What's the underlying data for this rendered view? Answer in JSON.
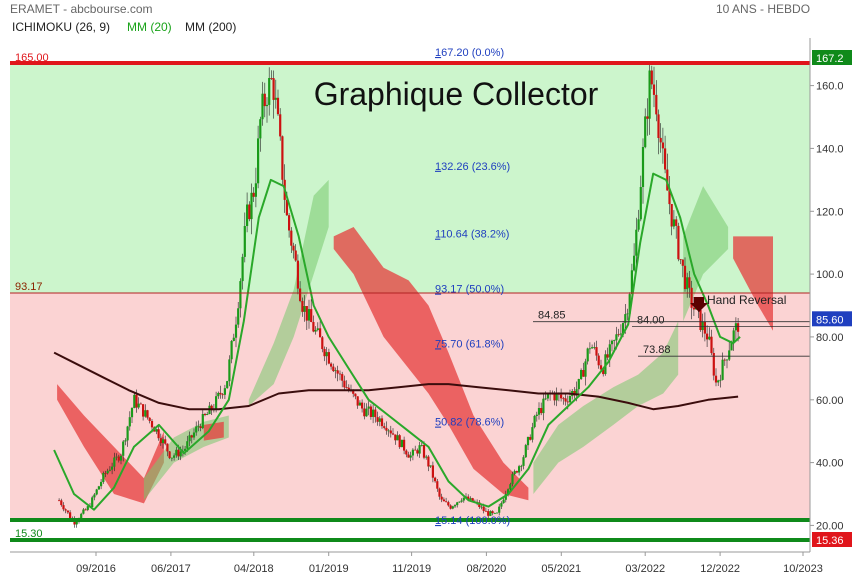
{
  "header": {
    "source": "ERAMET - abcbourse.com",
    "period": "10 ANS - HEBDO",
    "ichimoku": "ICHIMOKU (26, 9)",
    "mm20": "MM (20)",
    "mm200": "MM (200)"
  },
  "colors": {
    "upper_zone": "#ccf5cc",
    "lower_zone": "#fbd3d3",
    "red_line": "#e0151b",
    "green_line": "#0f8a1a",
    "mm20": "#2aa82a",
    "mm200": "#3b0d0d",
    "fib_text": "#1f3fbf",
    "candle_up": "#1a9a1a",
    "candle_down": "#cc1111"
  },
  "chart_data": {
    "type": "candlestick",
    "title": "Graphique Collector",
    "x_ticks": [
      "09/2016",
      "06/2017",
      "04/2018",
      "01/2019",
      "11/2019",
      "08/2020",
      "05/2021",
      "03/2022",
      "12/2022",
      "10/2023"
    ],
    "y_ticks": [
      20.0,
      40.0,
      60.0,
      80.0,
      100.0,
      120.0,
      140.0,
      160.0
    ],
    "ylim": [
      16,
      175
    ],
    "grid": false,
    "horizontal_lines": [
      {
        "value": 165.0,
        "label": "165.00",
        "color": "#e0151b"
      },
      {
        "value": 93.17,
        "label": "93.17",
        "color": "#b22222"
      },
      {
        "value": 20.5,
        "label": "",
        "color": "#0f8a1a"
      },
      {
        "value": 15.3,
        "label": "15.30",
        "color": "#0f8a1a"
      },
      {
        "value": 84.0,
        "label": "84.00",
        "color": "#333333"
      },
      {
        "value": 84.85,
        "label": "84.85",
        "color": "#333333"
      },
      {
        "value": 73.88,
        "label": "73.88",
        "color": "#333333"
      }
    ],
    "fibonacci": [
      {
        "value": 167.2,
        "label": "167.20  (0.0%)"
      },
      {
        "value": 132.26,
        "label": "132.26  (23.6%)"
      },
      {
        "value": 110.64,
        "label": "110.64  (38.2%)"
      },
      {
        "value": 93.17,
        "label": "93.17  (50.0%)"
      },
      {
        "value": 75.7,
        "label": "75.70  (61.8%)"
      },
      {
        "value": 50.82,
        "label": "50.82  (78.6%)"
      },
      {
        "value": 15.14,
        "label": "15.14  (100.0%)"
      }
    ],
    "price_tags": [
      {
        "value": 167.2,
        "label": "167.2",
        "color": "#0f8a1a"
      },
      {
        "value": 85.6,
        "label": "85.60",
        "color": "#1f3fbf"
      },
      {
        "value": 15.36,
        "label": "15.36",
        "color": "#e0151b"
      }
    ],
    "annotation": "Hand Reversal",
    "price_path": [
      [
        2016.3,
        28
      ],
      [
        2016.45,
        21
      ],
      [
        2016.6,
        26
      ],
      [
        2016.75,
        36
      ],
      [
        2016.92,
        43
      ],
      [
        2017.05,
        60
      ],
      [
        2017.15,
        56
      ],
      [
        2017.3,
        49
      ],
      [
        2017.42,
        42
      ],
      [
        2017.55,
        44
      ],
      [
        2017.7,
        52
      ],
      [
        2017.85,
        58
      ],
      [
        2017.98,
        66
      ],
      [
        2018.08,
        88
      ],
      [
        2018.18,
        118
      ],
      [
        2018.26,
        128
      ],
      [
        2018.32,
        150
      ],
      [
        2018.38,
        158
      ],
      [
        2018.44,
        162
      ],
      [
        2018.5,
        145
      ],
      [
        2018.58,
        118
      ],
      [
        2018.66,
        105
      ],
      [
        2018.74,
        90
      ],
      [
        2018.86,
        82
      ],
      [
        2018.98,
        75
      ],
      [
        2019.1,
        68
      ],
      [
        2019.22,
        62
      ],
      [
        2019.34,
        57
      ],
      [
        2019.46,
        55
      ],
      [
        2019.58,
        52
      ],
      [
        2019.7,
        47
      ],
      [
        2019.82,
        42
      ],
      [
        2019.92,
        45
      ],
      [
        2020.02,
        38
      ],
      [
        2020.12,
        28
      ],
      [
        2020.22,
        26
      ],
      [
        2020.34,
        29
      ],
      [
        2020.48,
        27
      ],
      [
        2020.58,
        24
      ],
      [
        2020.68,
        23
      ],
      [
        2020.8,
        33
      ],
      [
        2020.94,
        41
      ],
      [
        2021.08,
        55
      ],
      [
        2021.22,
        62
      ],
      [
        2021.36,
        60
      ],
      [
        2021.5,
        64
      ],
      [
        2021.62,
        78
      ],
      [
        2021.74,
        70
      ],
      [
        2021.86,
        78
      ],
      [
        2021.98,
        88
      ],
      [
        2022.06,
        105
      ],
      [
        2022.12,
        128
      ],
      [
        2022.18,
        150
      ],
      [
        2022.22,
        163
      ],
      [
        2022.28,
        155
      ],
      [
        2022.36,
        132
      ],
      [
        2022.44,
        118
      ],
      [
        2022.54,
        102
      ],
      [
        2022.62,
        92
      ],
      [
        2022.7,
        86
      ],
      [
        2022.8,
        80
      ],
      [
        2022.88,
        65
      ],
      [
        2022.96,
        72
      ],
      [
        2023.04,
        80
      ],
      [
        2023.1,
        84
      ]
    ],
    "mm20_path": [
      [
        2016.25,
        44
      ],
      [
        2016.45,
        30
      ],
      [
        2016.65,
        25
      ],
      [
        2016.85,
        32
      ],
      [
        2017.05,
        45
      ],
      [
        2017.3,
        52
      ],
      [
        2017.55,
        43
      ],
      [
        2017.8,
        50
      ],
      [
        2018.0,
        60
      ],
      [
        2018.15,
        85
      ],
      [
        2018.3,
        118
      ],
      [
        2018.42,
        130
      ],
      [
        2018.55,
        128
      ],
      [
        2018.7,
        112
      ],
      [
        2018.85,
        90
      ],
      [
        2019.0,
        80
      ],
      [
        2019.2,
        70
      ],
      [
        2019.4,
        60
      ],
      [
        2019.6,
        55
      ],
      [
        2019.8,
        50
      ],
      [
        2020.0,
        45
      ],
      [
        2020.2,
        34
      ],
      [
        2020.4,
        28
      ],
      [
        2020.6,
        26
      ],
      [
        2020.8,
        30
      ],
      [
        2021.0,
        38
      ],
      [
        2021.2,
        52
      ],
      [
        2021.4,
        58
      ],
      [
        2021.6,
        64
      ],
      [
        2021.8,
        72
      ],
      [
        2022.0,
        84
      ],
      [
        2022.12,
        110
      ],
      [
        2022.25,
        132
      ],
      [
        2022.38,
        130
      ],
      [
        2022.52,
        118
      ],
      [
        2022.66,
        100
      ],
      [
        2022.8,
        90
      ],
      [
        2022.92,
        80
      ],
      [
        2023.05,
        78
      ],
      [
        2023.12,
        80
      ]
    ],
    "mm200_path": [
      [
        2016.25,
        75
      ],
      [
        2016.5,
        71
      ],
      [
        2016.75,
        67
      ],
      [
        2017.0,
        63
      ],
      [
        2017.3,
        59
      ],
      [
        2017.6,
        57
      ],
      [
        2017.9,
        57
      ],
      [
        2018.2,
        58
      ],
      [
        2018.5,
        62
      ],
      [
        2018.8,
        63
      ],
      [
        2019.1,
        63
      ],
      [
        2019.4,
        63
      ],
      [
        2019.7,
        64
      ],
      [
        2020.0,
        65
      ],
      [
        2020.2,
        65
      ],
      [
        2020.5,
        64
      ],
      [
        2020.8,
        63
      ],
      [
        2021.1,
        62
      ],
      [
        2021.4,
        62
      ],
      [
        2021.7,
        61
      ],
      [
        2022.0,
        59
      ],
      [
        2022.25,
        57
      ],
      [
        2022.5,
        58
      ],
      [
        2022.8,
        60
      ],
      [
        2023.1,
        61
      ]
    ],
    "cloud_segments": [
      {
        "kind": "bear",
        "upper": [
          [
            2016.28,
            65
          ],
          [
            2016.55,
            55
          ],
          [
            2016.85,
            45
          ],
          [
            2017.15,
            35
          ],
          [
            2017.35,
            50
          ]
        ],
        "lower": [
          [
            2016.28,
            60
          ],
          [
            2016.55,
            45
          ],
          [
            2016.85,
            30
          ],
          [
            2017.15,
            27
          ],
          [
            2017.35,
            40
          ]
        ]
      },
      {
        "kind": "bull",
        "upper": [
          [
            2017.15,
            35
          ],
          [
            2017.45,
            48
          ],
          [
            2017.75,
            53
          ],
          [
            2018.0,
            55
          ]
        ],
        "lower": [
          [
            2017.15,
            28
          ],
          [
            2017.45,
            40
          ],
          [
            2017.75,
            45
          ],
          [
            2018.0,
            48
          ]
        ]
      },
      {
        "kind": "bear",
        "upper": [
          [
            2017.75,
            52
          ],
          [
            2017.95,
            53
          ]
        ],
        "lower": [
          [
            2017.75,
            47
          ],
          [
            2017.95,
            48
          ]
        ]
      },
      {
        "kind": "bull",
        "upper": [
          [
            2018.2,
            60
          ],
          [
            2018.45,
            78
          ],
          [
            2018.65,
            95
          ],
          [
            2018.85,
            125
          ],
          [
            2019.0,
            130
          ]
        ],
        "lower": [
          [
            2018.2,
            58
          ],
          [
            2018.45,
            65
          ],
          [
            2018.65,
            80
          ],
          [
            2018.85,
            100
          ],
          [
            2019.0,
            115
          ]
        ]
      },
      {
        "kind": "bear",
        "upper": [
          [
            2019.05,
            112
          ],
          [
            2019.25,
            115
          ],
          [
            2019.55,
            102
          ],
          [
            2019.8,
            98
          ],
          [
            2020.0,
            90
          ],
          [
            2020.2,
            75
          ],
          [
            2020.45,
            55
          ],
          [
            2020.75,
            40
          ],
          [
            2021.0,
            32
          ]
        ],
        "lower": [
          [
            2019.05,
            108
          ],
          [
            2019.25,
            100
          ],
          [
            2019.55,
            80
          ],
          [
            2019.8,
            70
          ],
          [
            2020.0,
            62
          ],
          [
            2020.2,
            52
          ],
          [
            2020.45,
            38
          ],
          [
            2020.75,
            30
          ],
          [
            2021.0,
            28
          ]
        ]
      },
      {
        "kind": "bull",
        "upper": [
          [
            2021.05,
            40
          ],
          [
            2021.3,
            52
          ],
          [
            2021.55,
            58
          ],
          [
            2021.85,
            64
          ],
          [
            2022.1,
            68
          ],
          [
            2022.35,
            75
          ],
          [
            2022.5,
            85
          ]
        ],
        "lower": [
          [
            2021.05,
            30
          ],
          [
            2021.3,
            40
          ],
          [
            2021.55,
            45
          ],
          [
            2021.85,
            52
          ],
          [
            2022.1,
            58
          ],
          [
            2022.35,
            62
          ],
          [
            2022.5,
            68
          ]
        ]
      },
      {
        "kind": "bull",
        "upper": [
          [
            2022.55,
            112
          ],
          [
            2022.75,
            128
          ],
          [
            2023.0,
            115
          ]
        ],
        "lower": [
          [
            2022.55,
            85
          ],
          [
            2022.75,
            100
          ],
          [
            2023.0,
            108
          ]
        ]
      },
      {
        "kind": "bear",
        "upper": [
          [
            2023.05,
            112
          ],
          [
            2023.45,
            112
          ]
        ],
        "lower": [
          [
            2023.05,
            105
          ],
          [
            2023.3,
            90
          ],
          [
            2023.45,
            82
          ]
        ]
      }
    ]
  }
}
